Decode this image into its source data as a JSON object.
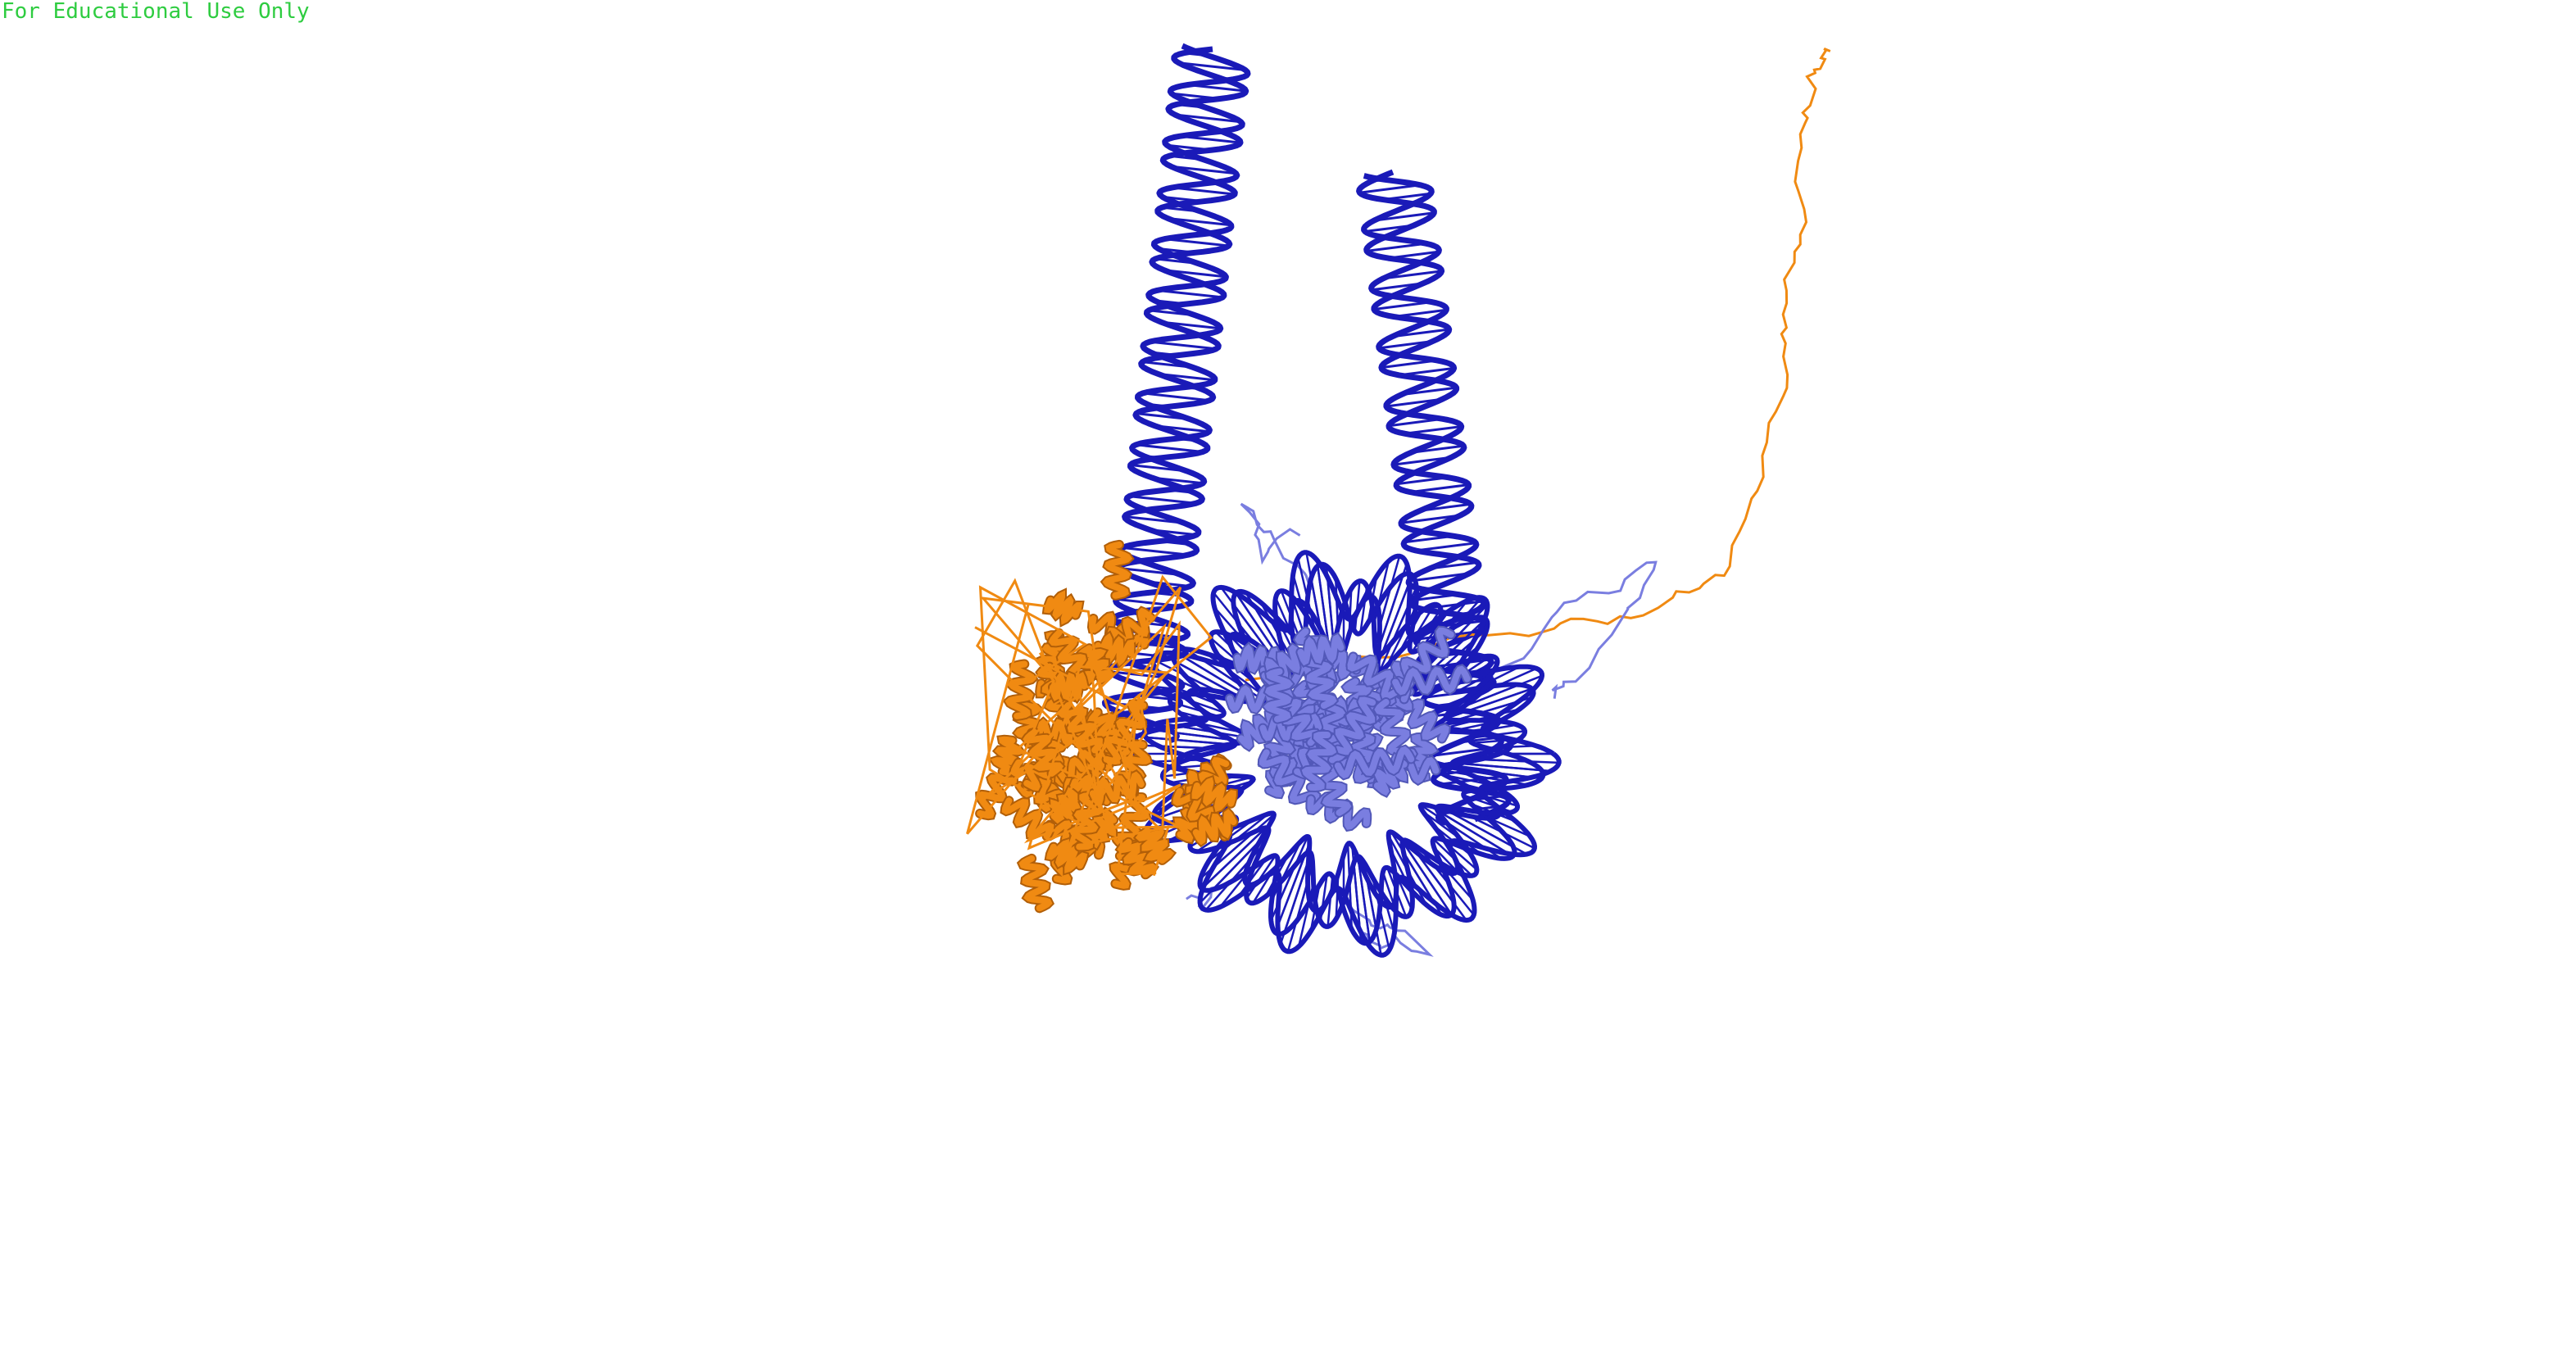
{
  "viewer": {
    "watermark": "For Educational Use Only",
    "background_color": "#ffffff",
    "watermark_color": "#2ecc40"
  },
  "structure": {
    "dna_color": "#1a1ab8",
    "histone_core_color": "#7a7ee0",
    "histone_core_dark": "#5258b8",
    "bound_protein_color": "#f08a12",
    "bound_protein_dark": "#b25f08",
    "components": [
      "dna-linker-left",
      "dna-linker-right",
      "nucleosome-dna-wrap",
      "histone-octamer-core",
      "bound-protein-domain",
      "disordered-tail-orange",
      "disordered-tail-blue"
    ]
  }
}
